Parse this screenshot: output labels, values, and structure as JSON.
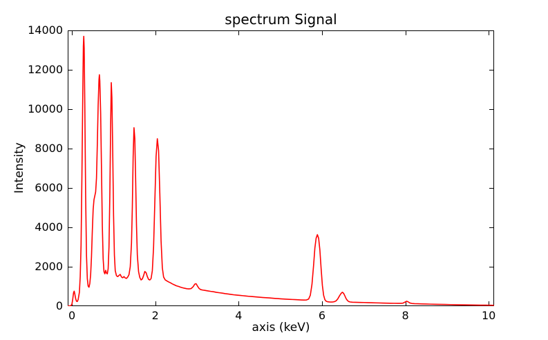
{
  "chart_data": {
    "type": "line",
    "title": "spectrum Signal",
    "xlabel": "axis (keV)",
    "ylabel": "Intensity",
    "xlim": [
      -0.1,
      10.13
    ],
    "ylim": [
      0,
      14000
    ],
    "x_ticks": [
      0,
      2,
      4,
      6,
      8,
      10
    ],
    "y_ticks": [
      0,
      2000,
      4000,
      6000,
      8000,
      10000,
      12000,
      14000
    ],
    "grid": false,
    "legend": null,
    "line_color": "#ff0000",
    "frame_color": "#000000",
    "series": [
      {
        "name": "spectrum",
        "points": [
          [
            -0.1,
            8
          ],
          [
            -0.06,
            12
          ],
          [
            -0.02,
            30
          ],
          [
            0.0,
            90
          ],
          [
            0.02,
            350
          ],
          [
            0.04,
            680
          ],
          [
            0.055,
            760
          ],
          [
            0.07,
            620
          ],
          [
            0.09,
            380
          ],
          [
            0.11,
            250
          ],
          [
            0.13,
            235
          ],
          [
            0.15,
            330
          ],
          [
            0.18,
            700
          ],
          [
            0.2,
            1500
          ],
          [
            0.22,
            3100
          ],
          [
            0.24,
            6500
          ],
          [
            0.26,
            10500
          ],
          [
            0.275,
            13200
          ],
          [
            0.285,
            13700
          ],
          [
            0.295,
            13100
          ],
          [
            0.31,
            10200
          ],
          [
            0.33,
            5600
          ],
          [
            0.35,
            2600
          ],
          [
            0.37,
            1400
          ],
          [
            0.39,
            1020
          ],
          [
            0.41,
            960
          ],
          [
            0.43,
            1150
          ],
          [
            0.45,
            1600
          ],
          [
            0.47,
            2500
          ],
          [
            0.49,
            3800
          ],
          [
            0.51,
            4900
          ],
          [
            0.53,
            5400
          ],
          [
            0.55,
            5600
          ],
          [
            0.57,
            5800
          ],
          [
            0.59,
            6500
          ],
          [
            0.61,
            8200
          ],
          [
            0.63,
            10200
          ],
          [
            0.65,
            11500
          ],
          [
            0.66,
            11750
          ],
          [
            0.67,
            11450
          ],
          [
            0.69,
            9800
          ],
          [
            0.71,
            7000
          ],
          [
            0.73,
            4100
          ],
          [
            0.75,
            2400
          ],
          [
            0.77,
            1750
          ],
          [
            0.79,
            1640
          ],
          [
            0.81,
            1820
          ],
          [
            0.83,
            1680
          ],
          [
            0.85,
            1640
          ],
          [
            0.87,
            1900
          ],
          [
            0.89,
            3000
          ],
          [
            0.91,
            5600
          ],
          [
            0.93,
            9200
          ],
          [
            0.945,
            11350
          ],
          [
            0.96,
            10600
          ],
          [
            0.98,
            7800
          ],
          [
            1.0,
            4600
          ],
          [
            1.02,
            2600
          ],
          [
            1.04,
            1800
          ],
          [
            1.07,
            1540
          ],
          [
            1.1,
            1500
          ],
          [
            1.13,
            1560
          ],
          [
            1.16,
            1610
          ],
          [
            1.19,
            1480
          ],
          [
            1.22,
            1440
          ],
          [
            1.25,
            1500
          ],
          [
            1.28,
            1430
          ],
          [
            1.31,
            1410
          ],
          [
            1.34,
            1480
          ],
          [
            1.37,
            1600
          ],
          [
            1.4,
            2000
          ],
          [
            1.43,
            3200
          ],
          [
            1.45,
            5000
          ],
          [
            1.47,
            7600
          ],
          [
            1.49,
            9060
          ],
          [
            1.51,
            8500
          ],
          [
            1.53,
            6400
          ],
          [
            1.55,
            4100
          ],
          [
            1.57,
            2600
          ],
          [
            1.6,
            1750
          ],
          [
            1.63,
            1450
          ],
          [
            1.66,
            1330
          ],
          [
            1.69,
            1380
          ],
          [
            1.72,
            1550
          ],
          [
            1.75,
            1760
          ],
          [
            1.78,
            1700
          ],
          [
            1.81,
            1500
          ],
          [
            1.84,
            1360
          ],
          [
            1.87,
            1330
          ],
          [
            1.9,
            1400
          ],
          [
            1.93,
            1800
          ],
          [
            1.96,
            3000
          ],
          [
            1.99,
            5300
          ],
          [
            2.02,
            7600
          ],
          [
            2.05,
            8500
          ],
          [
            2.08,
            7900
          ],
          [
            2.11,
            5700
          ],
          [
            2.14,
            3300
          ],
          [
            2.17,
            1950
          ],
          [
            2.2,
            1480
          ],
          [
            2.24,
            1330
          ],
          [
            2.28,
            1280
          ],
          [
            2.32,
            1230
          ],
          [
            2.36,
            1190
          ],
          [
            2.41,
            1130
          ],
          [
            2.46,
            1080
          ],
          [
            2.51,
            1030
          ],
          [
            2.56,
            1000
          ],
          [
            2.61,
            960
          ],
          [
            2.66,
            930
          ],
          [
            2.71,
            905
          ],
          [
            2.76,
            885
          ],
          [
            2.81,
            875
          ],
          [
            2.86,
            890
          ],
          [
            2.91,
            990
          ],
          [
            2.95,
            1120
          ],
          [
            2.98,
            1140
          ],
          [
            3.01,
            1030
          ],
          [
            3.05,
            900
          ],
          [
            3.09,
            840
          ],
          [
            3.14,
            815
          ],
          [
            3.19,
            800
          ],
          [
            3.26,
            775
          ],
          [
            3.33,
            750
          ],
          [
            3.4,
            730
          ],
          [
            3.47,
            700
          ],
          [
            3.54,
            680
          ],
          [
            3.61,
            660
          ],
          [
            3.68,
            635
          ],
          [
            3.75,
            615
          ],
          [
            3.82,
            595
          ],
          [
            3.89,
            575
          ],
          [
            3.96,
            560
          ],
          [
            4.03,
            545
          ],
          [
            4.1,
            530
          ],
          [
            4.17,
            515
          ],
          [
            4.24,
            500
          ],
          [
            4.31,
            488
          ],
          [
            4.38,
            475
          ],
          [
            4.45,
            462
          ],
          [
            4.52,
            450
          ],
          [
            4.59,
            438
          ],
          [
            4.66,
            428
          ],
          [
            4.73,
            418
          ],
          [
            4.8,
            405
          ],
          [
            4.87,
            392
          ],
          [
            4.94,
            382
          ],
          [
            5.01,
            372
          ],
          [
            5.08,
            362
          ],
          [
            5.15,
            352
          ],
          [
            5.22,
            345
          ],
          [
            5.29,
            338
          ],
          [
            5.36,
            330
          ],
          [
            5.43,
            322
          ],
          [
            5.5,
            315
          ],
          [
            5.57,
            310
          ],
          [
            5.63,
            315
          ],
          [
            5.68,
            360
          ],
          [
            5.72,
            550
          ],
          [
            5.76,
            1100
          ],
          [
            5.8,
            2100
          ],
          [
            5.83,
            2950
          ],
          [
            5.86,
            3450
          ],
          [
            5.89,
            3630
          ],
          [
            5.92,
            3450
          ],
          [
            5.95,
            2850
          ],
          [
            5.98,
            1900
          ],
          [
            6.01,
            1050
          ],
          [
            6.04,
            550
          ],
          [
            6.07,
            330
          ],
          [
            6.1,
            250
          ],
          [
            6.14,
            220
          ],
          [
            6.18,
            212
          ],
          [
            6.22,
            208
          ],
          [
            6.26,
            212
          ],
          [
            6.3,
            228
          ],
          [
            6.34,
            270
          ],
          [
            6.38,
            370
          ],
          [
            6.42,
            520
          ],
          [
            6.46,
            650
          ],
          [
            6.49,
            705
          ],
          [
            6.52,
            650
          ],
          [
            6.55,
            520
          ],
          [
            6.58,
            380
          ],
          [
            6.61,
            290
          ],
          [
            6.64,
            235
          ],
          [
            6.68,
            210
          ],
          [
            6.73,
            200
          ],
          [
            6.8,
            195
          ],
          [
            6.87,
            192
          ],
          [
            6.94,
            188
          ],
          [
            7.01,
            184
          ],
          [
            7.1,
            178
          ],
          [
            7.19,
            172
          ],
          [
            7.28,
            167
          ],
          [
            7.37,
            162
          ],
          [
            7.46,
            157
          ],
          [
            7.55,
            152
          ],
          [
            7.64,
            148
          ],
          [
            7.73,
            145
          ],
          [
            7.82,
            142
          ],
          [
            7.89,
            142
          ],
          [
            7.94,
            150
          ],
          [
            7.99,
            205
          ],
          [
            8.03,
            248
          ],
          [
            8.07,
            215
          ],
          [
            8.11,
            160
          ],
          [
            8.16,
            135
          ],
          [
            8.22,
            126
          ],
          [
            8.3,
            120
          ],
          [
            8.4,
            113
          ],
          [
            8.5,
            107
          ],
          [
            8.6,
            101
          ],
          [
            8.72,
            95
          ],
          [
            8.84,
            89
          ],
          [
            8.96,
            84
          ],
          [
            9.08,
            79
          ],
          [
            9.2,
            74
          ],
          [
            9.32,
            69
          ],
          [
            9.44,
            64
          ],
          [
            9.56,
            60
          ],
          [
            9.68,
            56
          ],
          [
            9.8,
            52
          ],
          [
            9.92,
            49
          ],
          [
            10.04,
            46
          ],
          [
            10.13,
            44
          ]
        ]
      }
    ]
  }
}
